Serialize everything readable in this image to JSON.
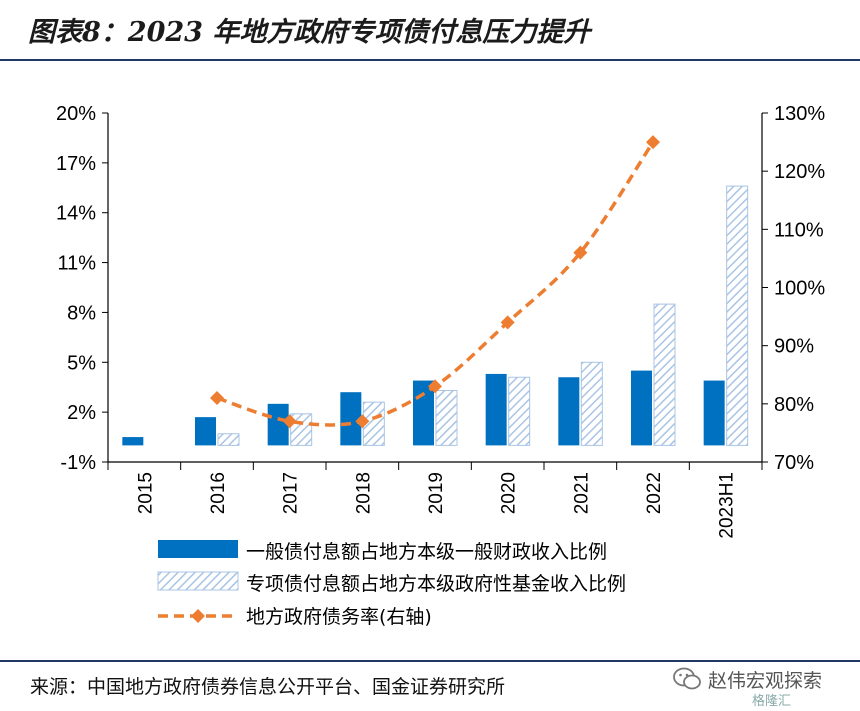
{
  "title": "图表8：2023 年地方政府专项债付息压力提升",
  "source": "来源：中国地方政府债券信息公开平台、国金证券研究所",
  "watermark": {
    "name": "赵伟宏观探索",
    "sub": "格隆汇"
  },
  "colors": {
    "bar1": "#0070c0",
    "bar2_stroke": "#a9c4e4",
    "line": "#ed7d31",
    "rule": "#1f3864"
  },
  "chart_data": {
    "type": "bar",
    "categories": [
      "2015",
      "2016",
      "2017",
      "2018",
      "2019",
      "2020",
      "2021",
      "2022",
      "2023H1"
    ],
    "series": [
      {
        "name": "一般债付息额占地方本级一般财政收入比例",
        "axis": "left",
        "type": "bar",
        "values": [
          0.5,
          1.7,
          2.5,
          3.2,
          3.9,
          4.3,
          4.1,
          4.5,
          3.9
        ]
      },
      {
        "name": "专项债付息额占地方本级政府性基金收入比例",
        "axis": "left",
        "type": "bar-hatched",
        "values": [
          null,
          0.7,
          1.9,
          2.6,
          3.3,
          4.1,
          5.0,
          8.5,
          15.6
        ]
      },
      {
        "name": "地方政府债务率(右轴)",
        "axis": "right",
        "type": "line-dashed",
        "values": [
          null,
          81.0,
          77.0,
          77.0,
          83.0,
          94.0,
          106.0,
          125.0,
          null
        ]
      }
    ],
    "left_axis": {
      "ticks": [
        "20%",
        "17%",
        "14%",
        "11%",
        "8%",
        "5%",
        "2%",
        "-1%"
      ],
      "min": -1,
      "max": 20
    },
    "right_axis": {
      "ticks": [
        "130%",
        "120%",
        "110%",
        "100%",
        "90%",
        "80%",
        "70%"
      ],
      "min": 70,
      "max": 130
    },
    "grid": false,
    "legend_position": "bottom"
  }
}
